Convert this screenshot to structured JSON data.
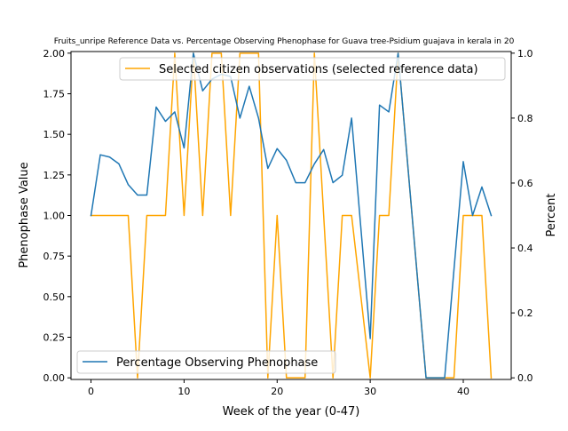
{
  "chart_data": {
    "type": "line",
    "title": "Fruits_unripe Reference Data vs. Percentage Observing Phenophase for Guava tree-Psidium guajava in kerala in 20",
    "xlabel": "Week of the year (0-47)",
    "ylabel_left": "Phenophase Value",
    "ylabel_right": "Percent",
    "xlim": [
      -2.15,
      45.15
    ],
    "ylim_left": [
      -0.01,
      2.01
    ],
    "ylim_right": [
      -0.005,
      1.005
    ],
    "x_ticks": [
      0,
      10,
      20,
      30,
      40
    ],
    "y_ticks_left": [
      "0.00",
      "0.25",
      "0.50",
      "0.75",
      "1.00",
      "1.25",
      "1.50",
      "1.75",
      "2.00"
    ],
    "y_ticks_right": [
      "0.0",
      "0.2",
      "0.4",
      "0.6",
      "0.8",
      "1.0"
    ],
    "grid": false,
    "series": [
      {
        "name": "Selected citizen observations (selected reference data)",
        "axis": "left",
        "color": "#ffa500",
        "legend_position": "upper right",
        "points": [
          [
            0,
            1
          ],
          [
            1,
            1
          ],
          [
            2,
            1
          ],
          [
            3,
            1
          ],
          [
            4,
            1
          ],
          [
            5,
            0
          ],
          [
            6,
            1
          ],
          [
            7,
            1
          ],
          [
            8,
            1
          ],
          [
            9,
            2
          ],
          [
            10,
            1
          ],
          [
            11,
            2
          ],
          [
            12,
            1
          ],
          [
            13,
            2
          ],
          [
            14,
            2
          ],
          [
            15,
            1
          ],
          [
            16,
            2
          ],
          [
            17,
            2
          ],
          [
            18,
            2
          ],
          [
            19,
            0
          ],
          [
            20,
            1
          ],
          [
            21,
            0
          ],
          [
            22,
            0
          ],
          [
            23,
            0
          ],
          [
            24,
            2
          ],
          [
            25,
            1
          ],
          [
            26,
            0
          ],
          [
            27,
            1
          ],
          [
            28,
            1
          ],
          [
            30,
            0
          ],
          [
            31,
            1
          ],
          [
            32,
            1
          ],
          [
            33,
            2
          ],
          [
            36,
            0
          ],
          [
            37,
            0
          ],
          [
            38,
            0
          ],
          [
            39,
            0
          ],
          [
            40,
            1
          ],
          [
            41,
            1
          ],
          [
            42,
            1
          ],
          [
            43,
            0
          ]
        ]
      },
      {
        "name": "Percentage Observing Phenophase",
        "axis": "right",
        "color": "#1f77b4",
        "legend_position": "lower left",
        "points": [
          [
            0,
            0.5
          ],
          [
            1,
            0.687
          ],
          [
            2,
            0.68
          ],
          [
            3,
            0.659
          ],
          [
            4,
            0.595
          ],
          [
            5,
            0.563
          ],
          [
            6,
            0.563
          ],
          [
            7,
            0.834
          ],
          [
            8,
            0.79
          ],
          [
            9,
            0.819
          ],
          [
            10,
            0.708
          ],
          [
            11,
            1.0
          ],
          [
            12,
            0.884
          ],
          [
            13,
            0.92
          ],
          [
            14,
            0.935
          ],
          [
            15,
            0.928
          ],
          [
            16,
            0.8
          ],
          [
            17,
            0.898
          ],
          [
            18,
            0.8
          ],
          [
            19,
            0.645
          ],
          [
            20,
            0.706
          ],
          [
            21,
            0.67
          ],
          [
            22,
            0.601
          ],
          [
            23,
            0.601
          ],
          [
            24,
            0.659
          ],
          [
            25,
            0.703
          ],
          [
            26,
            0.601
          ],
          [
            27,
            0.624
          ],
          [
            28,
            0.8
          ],
          [
            30,
            0.121
          ],
          [
            31,
            0.84
          ],
          [
            32,
            0.819
          ],
          [
            33,
            1.0
          ],
          [
            36,
            0.0
          ],
          [
            37,
            0.0
          ],
          [
            38,
            0.0
          ],
          [
            40,
            0.666
          ],
          [
            41,
            0.5
          ],
          [
            42,
            0.588
          ],
          [
            43,
            0.5
          ]
        ]
      }
    ]
  }
}
